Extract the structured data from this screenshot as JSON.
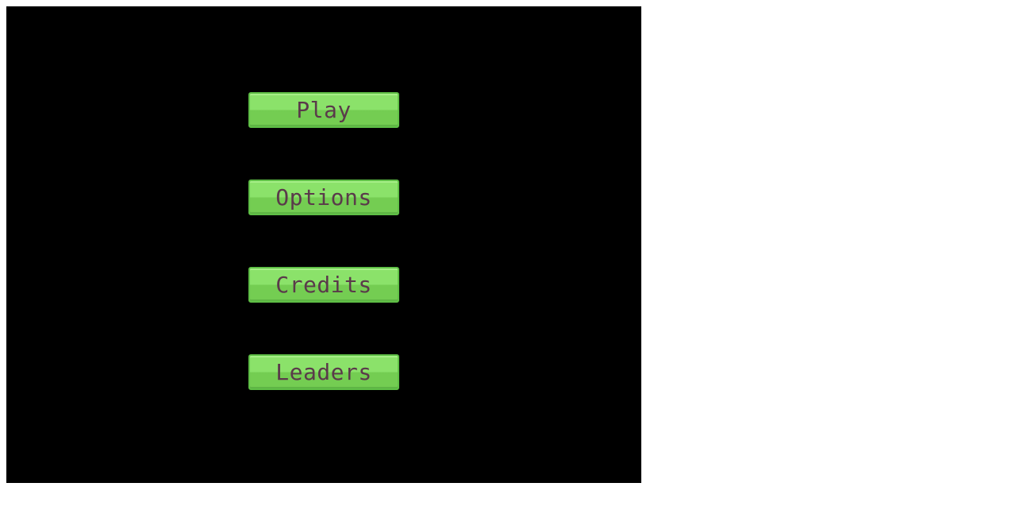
{
  "menu": {
    "play_label": "Play",
    "options_label": "Options",
    "credits_label": "Credits",
    "leaders_label": "Leaders"
  },
  "colors": {
    "background": "#000000",
    "button_fill": "#8be26a",
    "button_text": "#5a3a4a"
  }
}
